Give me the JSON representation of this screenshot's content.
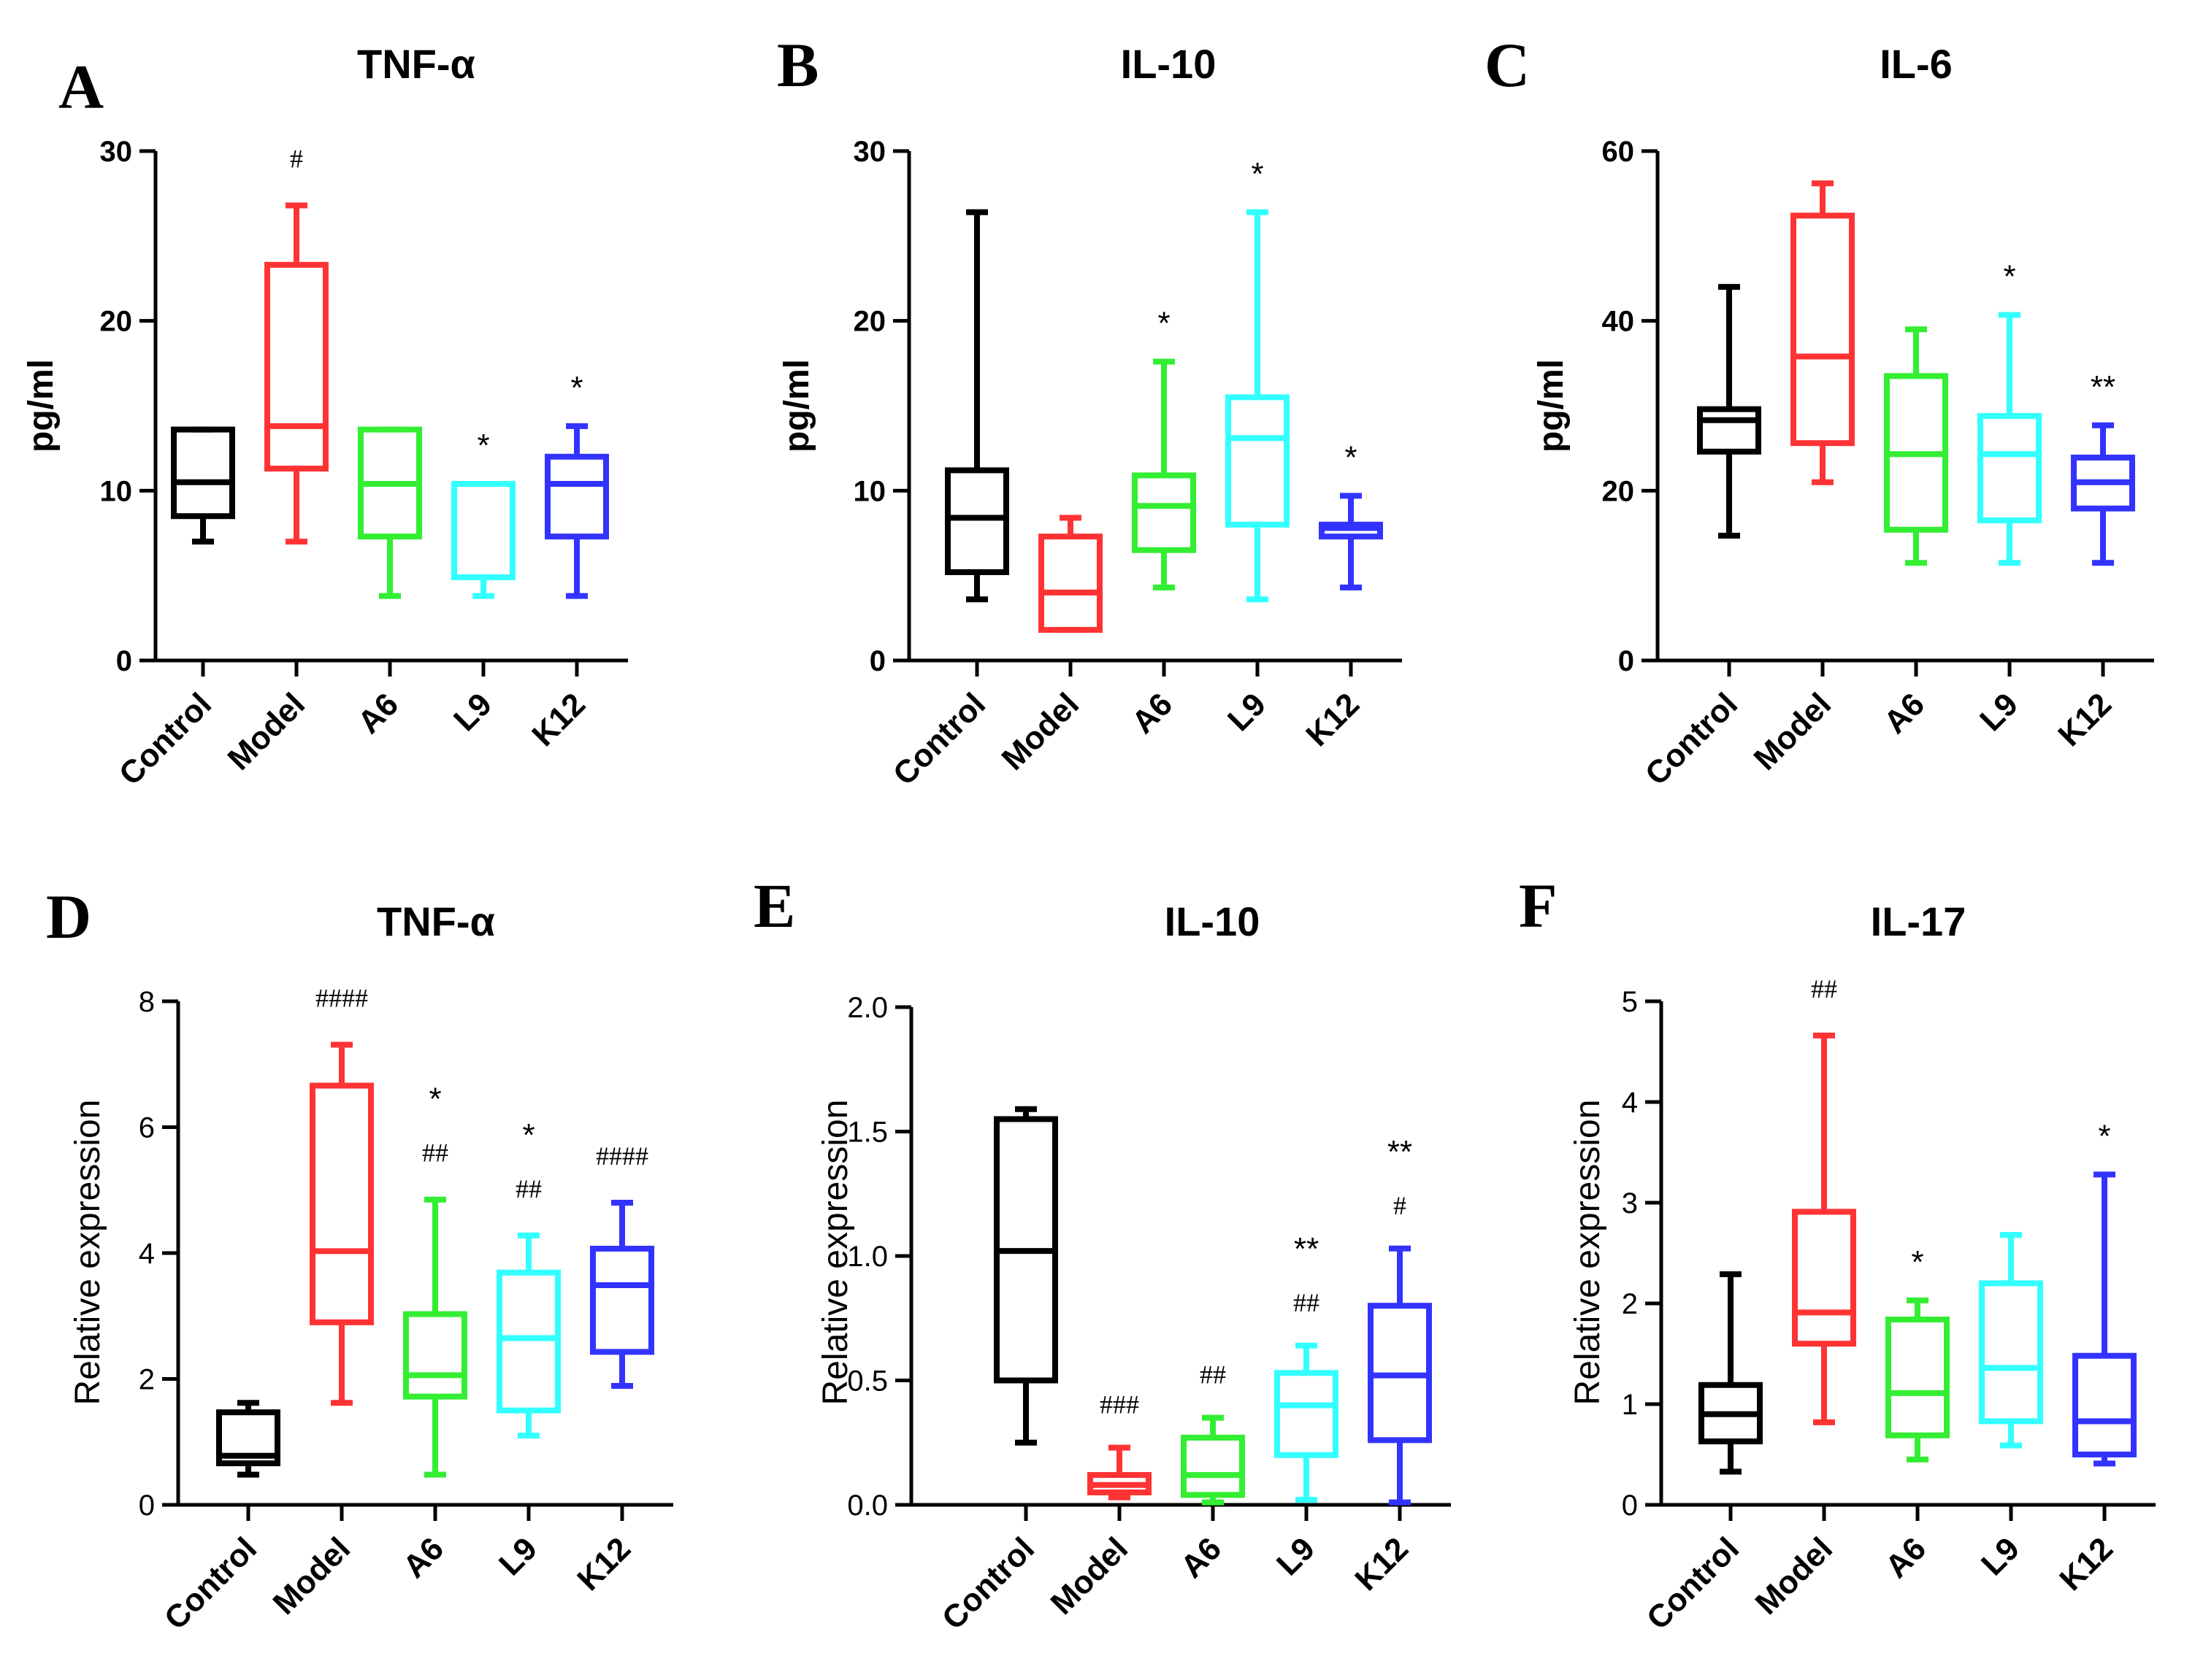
{
  "chart_data": [
    {
      "panel": "A",
      "type": "boxplot",
      "title": "TNF-α",
      "ylabel": "pg/ml",
      "ylim": [
        0,
        30
      ],
      "yticks": [
        "0",
        "10",
        "20",
        "30"
      ],
      "categories": [
        "Control",
        "Model",
        "A6",
        "L9",
        "K12"
      ],
      "colors": [
        "#000000",
        "#ff3333",
        "#33ee33",
        "#33ffff",
        "#3333ff"
      ],
      "boxes": [
        {
          "min": 7.0,
          "q1": 8.5,
          "median": 10.5,
          "q3": 13.6,
          "max": 13.6
        },
        {
          "min": 7.0,
          "q1": 11.3,
          "median": 13.8,
          "q3": 23.3,
          "max": 26.8
        },
        {
          "min": 3.8,
          "q1": 7.3,
          "median": 10.4,
          "q3": 13.6,
          "max": 13.6
        },
        {
          "min": 3.8,
          "q1": 4.9,
          "median": 10.4,
          "q3": 10.4,
          "max": 10.4
        },
        {
          "min": 3.8,
          "q1": 7.3,
          "median": 10.4,
          "q3": 12.0,
          "max": 13.8
        }
      ],
      "annotations": [
        {
          "category": "Model",
          "lines": [
            "#"
          ]
        },
        {
          "category": "L9",
          "lines": [
            "*"
          ]
        },
        {
          "category": "K12",
          "lines": [
            "*"
          ]
        }
      ]
    },
    {
      "panel": "B",
      "type": "boxplot",
      "title": "IL-10",
      "ylabel": "pg/ml",
      "ylim": [
        0,
        30
      ],
      "yticks": [
        "0",
        "10",
        "20",
        "30"
      ],
      "categories": [
        "Control",
        "Model",
        "A6",
        "L9",
        "K12"
      ],
      "colors": [
        "#000000",
        "#ff3333",
        "#33ee33",
        "#33ffff",
        "#3333ff"
      ],
      "boxes": [
        {
          "min": 3.6,
          "q1": 5.2,
          "median": 8.4,
          "q3": 11.2,
          "max": 26.4
        },
        {
          "min": 1.8,
          "q1": 1.8,
          "median": 4.0,
          "q3": 7.3,
          "max": 8.4
        },
        {
          "min": 4.3,
          "q1": 6.5,
          "median": 9.1,
          "q3": 10.9,
          "max": 17.6
        },
        {
          "min": 3.6,
          "q1": 8.0,
          "median": 13.1,
          "q3": 15.5,
          "max": 26.4
        },
        {
          "min": 4.3,
          "q1": 7.3,
          "median": 7.8,
          "q3": 8.0,
          "max": 9.7
        }
      ],
      "annotations": [
        {
          "category": "A6",
          "lines": [
            "*"
          ]
        },
        {
          "category": "L9",
          "lines": [
            "*"
          ]
        },
        {
          "category": "K12",
          "lines": [
            "*"
          ]
        }
      ]
    },
    {
      "panel": "C",
      "type": "boxplot",
      "title": "IL-6",
      "ylabel": "pg/ml",
      "ylim": [
        0,
        60
      ],
      "yticks": [
        "0",
        "20",
        "40",
        "60"
      ],
      "categories": [
        "Control",
        "Model",
        "A6",
        "L9",
        "K12"
      ],
      "colors": [
        "#000000",
        "#ff3333",
        "#33ee33",
        "#33ffff",
        "#3333ff"
      ],
      "boxes": [
        {
          "min": 14.7,
          "q1": 24.6,
          "median": 28.3,
          "q3": 29.6,
          "max": 44.0
        },
        {
          "min": 21.0,
          "q1": 25.6,
          "median": 35.8,
          "q3": 52.4,
          "max": 56.2
        },
        {
          "min": 11.5,
          "q1": 15.4,
          "median": 24.3,
          "q3": 33.5,
          "max": 39.0
        },
        {
          "min": 11.5,
          "q1": 16.5,
          "median": 24.3,
          "q3": 28.8,
          "max": 40.7
        },
        {
          "min": 11.5,
          "q1": 17.9,
          "median": 21.0,
          "q3": 23.9,
          "max": 27.7
        }
      ],
      "annotations": [
        {
          "category": "L9",
          "lines": [
            "*"
          ]
        },
        {
          "category": "K12",
          "lines": [
            "**"
          ]
        }
      ]
    },
    {
      "panel": "D",
      "type": "boxplot",
      "title": "TNF-α",
      "ylabel": "Relative expression",
      "ylim": [
        0,
        8
      ],
      "yticks": [
        "0",
        "2",
        "4",
        "6",
        "8"
      ],
      "categories": [
        "Control",
        "Model",
        "A6",
        "L9",
        "K12"
      ],
      "colors": [
        "#000000",
        "#ff3333",
        "#33ee33",
        "#33ffff",
        "#3333ff"
      ],
      "boxes": [
        {
          "min": 0.48,
          "q1": 0.66,
          "median": 0.78,
          "q3": 1.47,
          "max": 1.62
        },
        {
          "min": 1.62,
          "q1": 2.9,
          "median": 4.03,
          "q3": 6.66,
          "max": 7.31
        },
        {
          "min": 0.48,
          "q1": 1.72,
          "median": 2.06,
          "q3": 3.03,
          "max": 4.85
        },
        {
          "min": 1.1,
          "q1": 1.5,
          "median": 2.65,
          "q3": 3.69,
          "max": 4.28
        },
        {
          "min": 1.89,
          "q1": 2.43,
          "median": 3.49,
          "q3": 4.07,
          "max": 4.8
        }
      ],
      "annotations": [
        {
          "category": "Model",
          "lines": [
            "####"
          ]
        },
        {
          "category": "A6",
          "lines": [
            "*",
            "##"
          ]
        },
        {
          "category": "L9",
          "lines": [
            "*",
            "##"
          ]
        },
        {
          "category": "K12",
          "lines": [
            "####"
          ]
        }
      ]
    },
    {
      "panel": "E",
      "type": "boxplot",
      "title": "IL-10",
      "ylabel": "Relative expression",
      "ylim": [
        0,
        2.0
      ],
      "yticks": [
        "0.0",
        "0.5",
        "1.0",
        "1.5",
        "2.0"
      ],
      "categories": [
        "Control",
        "Model",
        "A6",
        "L9",
        "K12"
      ],
      "colors": [
        "#000000",
        "#ff3333",
        "#33ee33",
        "#33ffff",
        "#3333ff"
      ],
      "boxes": [
        {
          "min": 0.25,
          "q1": 0.5,
          "median": 1.02,
          "q3": 1.55,
          "max": 1.59
        },
        {
          "min": 0.03,
          "q1": 0.05,
          "median": 0.08,
          "q3": 0.12,
          "max": 0.23
        },
        {
          "min": 0.01,
          "q1": 0.04,
          "median": 0.12,
          "q3": 0.27,
          "max": 0.35
        },
        {
          "min": 0.02,
          "q1": 0.2,
          "median": 0.4,
          "q3": 0.53,
          "max": 0.64
        },
        {
          "min": 0.01,
          "q1": 0.26,
          "median": 0.52,
          "q3": 0.8,
          "max": 1.03
        }
      ],
      "annotations": [
        {
          "category": "Model",
          "lines": [
            "###"
          ]
        },
        {
          "category": "A6",
          "lines": [
            "##"
          ]
        },
        {
          "category": "L9",
          "lines": [
            "**",
            "##"
          ]
        },
        {
          "category": "K12",
          "lines": [
            "**",
            "#"
          ]
        }
      ]
    },
    {
      "panel": "F",
      "type": "boxplot",
      "title": "IL-17",
      "ylabel": "Relative expression",
      "ylim": [
        0,
        5
      ],
      "yticks": [
        "0",
        "1",
        "2",
        "3",
        "4",
        "5"
      ],
      "categories": [
        "Control",
        "Model",
        "A6",
        "L9",
        "K12"
      ],
      "colors": [
        "#000000",
        "#ff3333",
        "#33ee33",
        "#33ffff",
        "#3333ff"
      ],
      "boxes": [
        {
          "min": 0.33,
          "q1": 0.63,
          "median": 0.9,
          "q3": 1.19,
          "max": 2.29
        },
        {
          "min": 0.82,
          "q1": 1.6,
          "median": 1.91,
          "q3": 2.91,
          "max": 4.66
        },
        {
          "min": 0.45,
          "q1": 0.69,
          "median": 1.11,
          "q3": 1.84,
          "max": 2.03
        },
        {
          "min": 0.59,
          "q1": 0.83,
          "median": 1.36,
          "q3": 2.2,
          "max": 2.68
        },
        {
          "min": 0.41,
          "q1": 0.5,
          "median": 0.83,
          "q3": 1.48,
          "max": 3.28
        }
      ],
      "annotations": [
        {
          "category": "Model",
          "lines": [
            "##"
          ]
        },
        {
          "category": "A6",
          "lines": [
            "*"
          ]
        },
        {
          "category": "K12",
          "lines": [
            "*"
          ]
        }
      ]
    }
  ]
}
